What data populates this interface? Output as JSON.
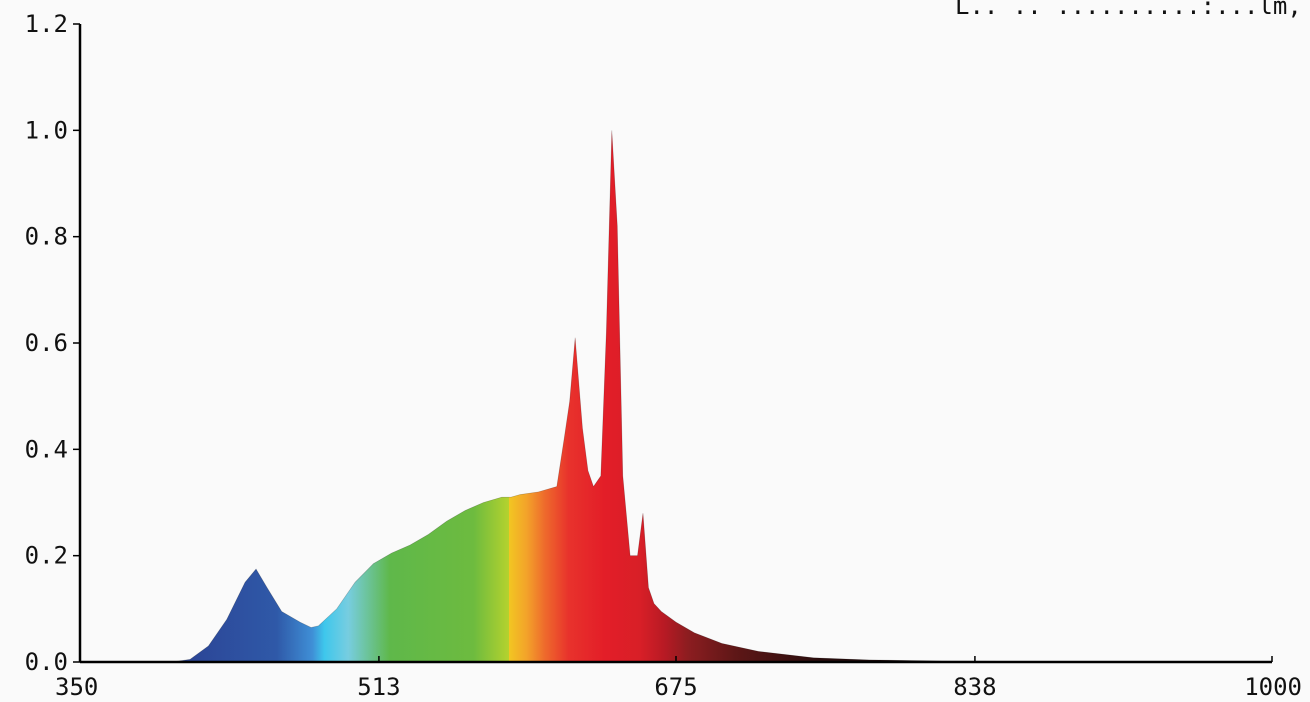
{
  "header": {
    "text": "L.. .. ..........:...lm, ..."
  },
  "chart_data": {
    "type": "area",
    "title": "",
    "xlabel": "",
    "ylabel": "",
    "xlim": [
      350,
      1000
    ],
    "ylim": [
      0,
      1.2
    ],
    "grid": false,
    "x_ticks": [
      "350",
      "513",
      "675",
      "838",
      "1000"
    ],
    "y_ticks": [
      "0.0",
      "0.2",
      "0.4",
      "0.6",
      "0.8",
      "1.0",
      "1.2"
    ],
    "series": [
      {
        "x": [
          350,
          400,
          410,
          420,
          430,
          440,
          446,
          452,
          460,
          470,
          476,
          480,
          490,
          500,
          510,
          520,
          530,
          540,
          550,
          560,
          570,
          580,
          585,
          590,
          600,
          610,
          614,
          617,
          620,
          624,
          627,
          630,
          634,
          637,
          640,
          643,
          646,
          650,
          654,
          657,
          660,
          663,
          667,
          675,
          685,
          700,
          720,
          750,
          780,
          820,
          870,
          1000
        ],
        "y": [
          0.0,
          0.0,
          0.005,
          0.03,
          0.08,
          0.15,
          0.175,
          0.14,
          0.095,
          0.075,
          0.065,
          0.068,
          0.1,
          0.15,
          0.185,
          0.205,
          0.22,
          0.24,
          0.265,
          0.285,
          0.3,
          0.31,
          0.31,
          0.315,
          0.32,
          0.33,
          0.42,
          0.49,
          0.61,
          0.44,
          0.36,
          0.33,
          0.35,
          0.62,
          1.0,
          0.82,
          0.35,
          0.2,
          0.2,
          0.28,
          0.14,
          0.11,
          0.095,
          0.075,
          0.055,
          0.035,
          0.02,
          0.008,
          0.004,
          0.002,
          0.001,
          0.0
        ]
      }
    ]
  }
}
